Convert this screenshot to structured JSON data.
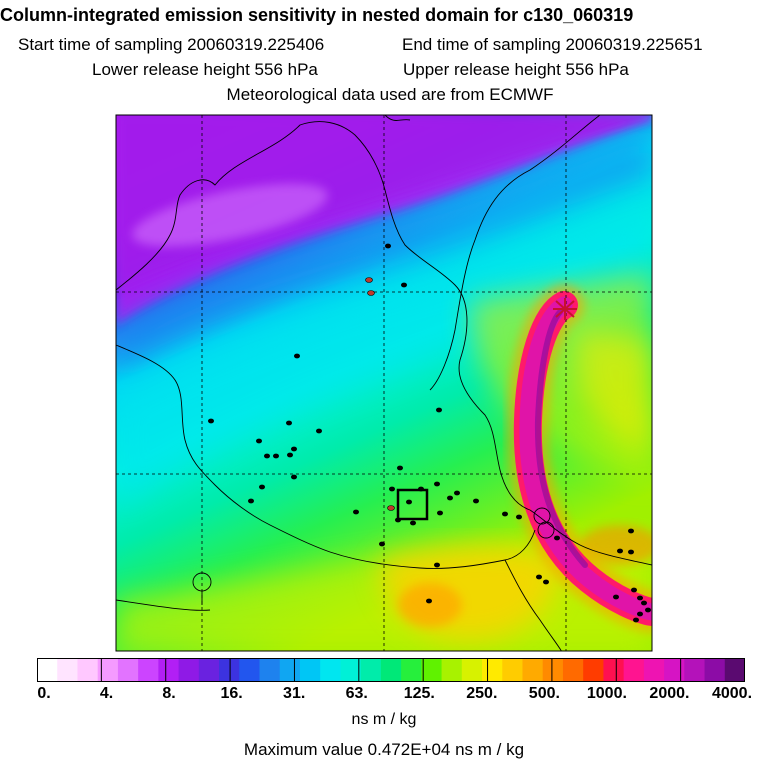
{
  "header": {
    "title": "Column-integrated emission sensitivity in nested domain for c130_060319",
    "start": "Start time of sampling 20060319.225406",
    "end": "End time of sampling 20060319.225651",
    "lower": "Lower release height  556 hPa",
    "upper": "Upper release height  556 hPa",
    "met": "Meteorological data used are from ECMWF"
  },
  "colorbar": {
    "colors": [
      "#ffffff",
      "#ffe4ff",
      "#ffc8ff",
      "#f59bff",
      "#e273ff",
      "#cc44ff",
      "#b21ff5",
      "#8f1ae6",
      "#6a22e0",
      "#3c33e0",
      "#2256ee",
      "#1e82ee",
      "#10a6f2",
      "#00c6f5",
      "#00e6f0",
      "#00f0d7",
      "#00ecaa",
      "#00e878",
      "#26ef3c",
      "#60f200",
      "#a8f200",
      "#d7f200",
      "#ffea00",
      "#ffcc00",
      "#ffaa00",
      "#ff8a00",
      "#ff6a00",
      "#ff3c00",
      "#ff1050",
      "#ff1490",
      "#ee14b2",
      "#d614c4",
      "#b412ba",
      "#8c0ca6",
      "#5a0a70"
    ],
    "ticks": [
      "0.",
      "4.",
      "8.",
      "16.",
      "31.",
      "63.",
      "125.",
      "250.",
      "500.",
      "1000.",
      "2000.",
      "4000."
    ],
    "units": "ns m / kg",
    "max_value": "Maximum value  0.472E+04 ns m / kg"
  },
  "map": {
    "markers": [
      [
        388,
        246
      ],
      [
        404,
        285
      ],
      [
        297,
        356
      ],
      [
        211,
        421
      ],
      [
        289,
        423
      ],
      [
        319,
        431
      ],
      [
        259,
        441
      ],
      [
        267,
        456
      ],
      [
        276,
        456
      ],
      [
        290,
        455
      ],
      [
        294,
        449
      ],
      [
        439,
        410
      ],
      [
        400,
        468
      ],
      [
        294,
        477
      ],
      [
        262,
        487
      ],
      [
        251,
        501
      ],
      [
        437,
        484
      ],
      [
        392,
        489
      ],
      [
        409,
        502
      ],
      [
        421,
        489
      ],
      [
        450,
        498
      ],
      [
        457,
        493
      ],
      [
        476,
        501
      ],
      [
        440,
        513
      ],
      [
        356,
        512
      ],
      [
        398,
        520
      ],
      [
        413,
        523
      ],
      [
        505,
        514
      ],
      [
        519,
        517
      ],
      [
        382,
        544
      ],
      [
        437,
        565
      ],
      [
        429,
        601
      ],
      [
        557,
        538
      ],
      [
        620,
        551
      ],
      [
        631,
        531
      ],
      [
        631,
        552
      ],
      [
        634,
        590
      ],
      [
        640,
        598
      ],
      [
        616,
        597
      ],
      [
        644,
        603
      ],
      [
        648,
        610
      ],
      [
        640,
        614
      ],
      [
        636,
        620
      ],
      [
        546,
        582
      ],
      [
        539,
        577
      ]
    ],
    "circles": [
      [
        202,
        582
      ],
      [
        542,
        516
      ],
      [
        546,
        530
      ]
    ]
  }
}
